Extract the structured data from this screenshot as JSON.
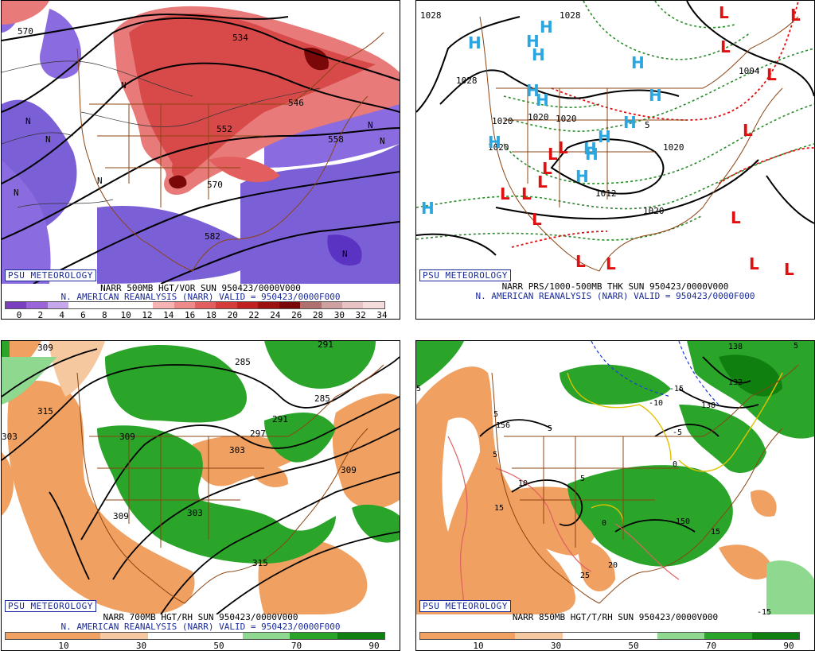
{
  "panels": [
    {
      "badge": "PSU METEOROLOGY",
      "caption1": "NARR 500MB HGT/VOR SUN 950423/0000V000",
      "caption2": "N. AMERICAN REANALYSIS (NARR) VALID = 950423/0000F000",
      "colorbar_ticks": [
        "0",
        "2",
        "4",
        "6",
        "8",
        "10",
        "12",
        "14",
        "16",
        "18",
        "20",
        "22",
        "24",
        "26",
        "28",
        "30",
        "32",
        "34"
      ],
      "colorbar_colors": [
        "#7a3fbf",
        "#9a63d6",
        "#c6a6ec",
        "#ffffff",
        "#ffffff",
        "#ffffff",
        "#ffffff",
        "#f7b3b3",
        "#ef8a8a",
        "#e35e5e",
        "#d53b3b",
        "#c02020",
        "#9d1010",
        "#7a0808",
        "#b07070",
        "#cfa0a0",
        "#e8c2c2",
        "#f5dcdc"
      ],
      "contour_labels": [
        "570",
        "534",
        "546",
        "552",
        "558",
        "570",
        "582",
        "N",
        "N",
        "N",
        "N",
        "N",
        "N",
        "N",
        "N"
      ]
    },
    {
      "badge": "PSU METEOROLOGY",
      "caption1": "NARR PRS/1000-500MB THK SUN 950423/0000V000",
      "caption2": "N. AMERICAN REANALYSIS (NARR) VALID = 950423/0000F000",
      "contour_labels": [
        "1028",
        "1028",
        "1020",
        "1020",
        "1020",
        "1020",
        "1012",
        "1020",
        "1028",
        "1020",
        "1004",
        "5"
      ],
      "highs": [
        "H",
        "H",
        "H",
        "H",
        "H",
        "H",
        "H",
        "H",
        "H",
        "H",
        "H",
        "H",
        "H",
        "H",
        "H"
      ],
      "lows": [
        "L",
        "L",
        "L",
        "L",
        "L",
        "L",
        "L",
        "L",
        "L",
        "L",
        "L",
        "L",
        "L",
        "L",
        "L",
        "L",
        "L"
      ]
    },
    {
      "badge": "PSU METEOROLOGY",
      "caption1": "NARR 700MB HGT/RH SUN 950423/0000V000",
      "caption2": "N. AMERICAN REANALYSIS (NARR) VALID = 950423/0000F000",
      "colorbar_ticks": [
        "10",
        "30",
        "50",
        "70",
        "90"
      ],
      "colorbar_colors": [
        "#f0a060",
        "#f0a060",
        "#f5c8a0",
        "#ffffff",
        "#ffffff",
        "#8fd88f",
        "#2aa52a",
        "#0f7f0f"
      ],
      "contour_labels": [
        "309",
        "315",
        "285",
        "291",
        "285",
        "291",
        "297",
        "303",
        "309",
        "309",
        "303",
        "309",
        "315",
        "303"
      ]
    },
    {
      "badge": "PSU METEOROLOGY",
      "caption1": "NARR 850MB HGT/T/RH SUN 950423/0000V000",
      "caption2": "",
      "colorbar_ticks": [
        "10",
        "30",
        "50",
        "70",
        "90"
      ],
      "colorbar_colors": [
        "#f0a060",
        "#f0a060",
        "#f5c8a0",
        "#ffffff",
        "#ffffff",
        "#8fd88f",
        "#2aa52a",
        "#0f7f0f"
      ],
      "contour_labels": [
        "5",
        "156",
        "5",
        "5",
        "5",
        "-15",
        "-10",
        "-5",
        "0",
        "0",
        "5",
        "15",
        "10",
        "150",
        "15",
        "25",
        "20",
        "-15",
        "132",
        "138",
        "138",
        "5"
      ]
    }
  ]
}
